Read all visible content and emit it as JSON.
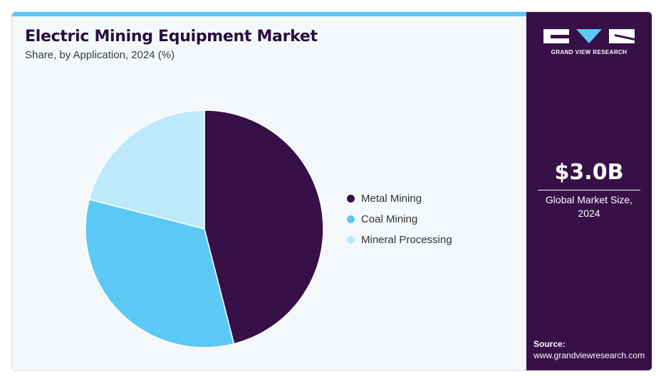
{
  "header": {
    "title": "Electric Mining Equipment Market",
    "subtitle": "Share, by Application, 2024 (%)"
  },
  "brand": {
    "logo_text": "GRAND VIEW RESEARCH",
    "logo_icon": "gvr-logo-icon"
  },
  "kpi": {
    "value": "$3.0B",
    "label_line1": "Global Market Size,",
    "label_line2": "2024"
  },
  "source": {
    "label": "Source:",
    "url": "www.grandviewresearch.com"
  },
  "colors": {
    "accent_bar": "#5bc8f5",
    "panel": "#361046",
    "title": "#2a0d3e"
  },
  "chart_data": {
    "type": "pie",
    "title": "Electric Mining Equipment Market",
    "subtitle": "Share, by Application, 2024 (%)",
    "legend_position": "right",
    "slices": [
      {
        "label": "Metal Mining",
        "value": 46,
        "color": "#361046"
      },
      {
        "label": "Coal Mining",
        "value": 33,
        "color": "#5bc8f5"
      },
      {
        "label": "Mineral Processing",
        "value": 21,
        "color": "#bde9fa"
      }
    ]
  }
}
